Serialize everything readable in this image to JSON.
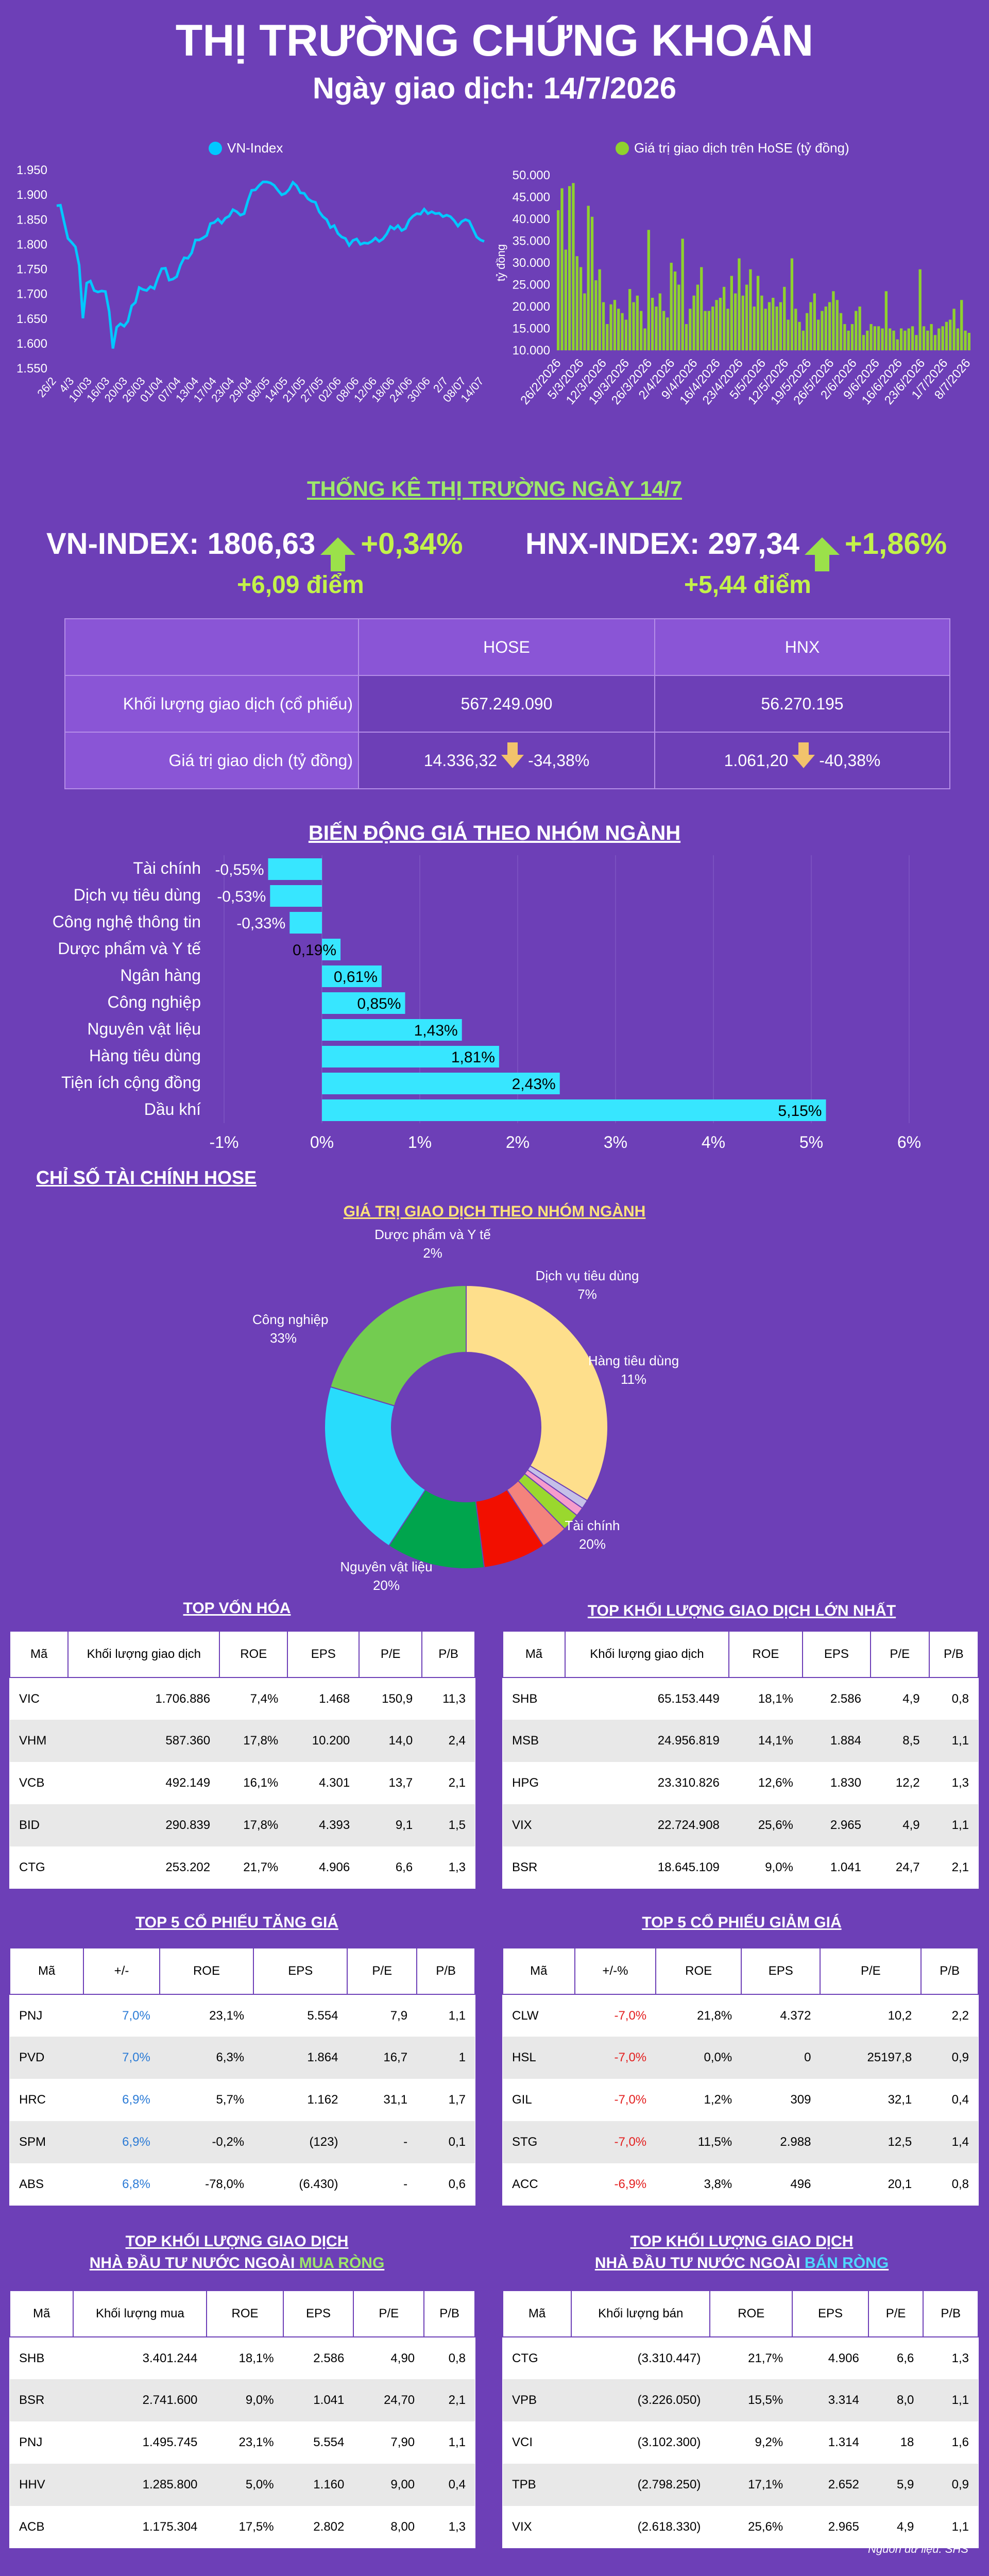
{
  "header": {
    "title": "THỊ TRƯỜNG CHỨNG KHOÁN",
    "subtitle": "Ngày giao dịch: 14/7/2026"
  },
  "chart_data": [
    {
      "type": "line",
      "legend": "VN-Index",
      "color": "#00c8ff",
      "x_ticks": [
        "26/2",
        "4/3",
        "10/03",
        "16/03",
        "20/03",
        "26/03",
        "01/04",
        "07/04",
        "13/04",
        "17/04",
        "23/04",
        "29/04",
        "08/05",
        "14/05",
        "21/05",
        "27/05",
        "02/06",
        "08/06",
        "12/06",
        "18/06",
        "24/06",
        "30/06",
        "2/7",
        "08/07",
        "14/07"
      ],
      "ylim": [
        1550,
        1950
      ],
      "y_ticks": [
        "1.550",
        "1.600",
        "1.650",
        "1.700",
        "1.750",
        "1.800",
        "1.850",
        "1.900",
        "1.950"
      ],
      "values": [
        1878,
        1879,
        1845,
        1812,
        1804,
        1795,
        1758,
        1651,
        1722,
        1726,
        1707,
        1704,
        1706,
        1705,
        1665,
        1590,
        1633,
        1640,
        1635,
        1645,
        1676,
        1683,
        1713,
        1709,
        1707,
        1715,
        1711,
        1733,
        1751,
        1752,
        1728,
        1730,
        1735,
        1758,
        1773,
        1772,
        1783,
        1809,
        1809,
        1813,
        1818,
        1842,
        1844,
        1851,
        1843,
        1853,
        1857,
        1870,
        1866,
        1859,
        1862,
        1888,
        1909,
        1910,
        1919,
        1926,
        1926,
        1924,
        1919,
        1909,
        1900,
        1903,
        1911,
        1925,
        1918,
        1904,
        1903,
        1892,
        1887,
        1885,
        1866,
        1856,
        1850,
        1834,
        1838,
        1822,
        1815,
        1812,
        1798,
        1808,
        1811,
        1800,
        1803,
        1802,
        1806,
        1813,
        1806,
        1811,
        1821,
        1836,
        1831,
        1838,
        1828,
        1832,
        1849,
        1857,
        1862,
        1861,
        1871,
        1862,
        1866,
        1862,
        1863,
        1856,
        1859,
        1856,
        1848,
        1837,
        1846,
        1850,
        1847,
        1831,
        1815,
        1809,
        1806
      ]
    },
    {
      "type": "bar",
      "legend": "Giá trị giao dịch trên HoSE (tỷ đồng)",
      "color": "#8fd12e",
      "ylabel": "tỷ đồng",
      "x_ticks": [
        "26/2/2026",
        "5/3/2026",
        "12/3/2026",
        "19/3/2026",
        "26/3/2026",
        "2/4/2026",
        "9/4/2026",
        "16/4/2026",
        "23/4/2026",
        "5/5/2026",
        "12/5/2026",
        "19/5/2026",
        "26/5/2026",
        "2/6/2026",
        "9/6/2026",
        "16/6/2026",
        "23/6/2026",
        "1/7/2026",
        "8/7/2026"
      ],
      "ylim": [
        10000,
        50000
      ],
      "y_ticks": [
        "10.000",
        "15.000",
        "20.000",
        "25.000",
        "30.000",
        "35.000",
        "40.000",
        "45.000",
        "50.000"
      ],
      "values": [
        42000,
        47000,
        33000,
        47500,
        48200,
        31500,
        29000,
        23000,
        43000,
        40500,
        26000,
        28500,
        21000,
        16000,
        20500,
        21500,
        19500,
        18500,
        17000,
        24000,
        21000,
        22500,
        19000,
        15000,
        37500,
        22000,
        20000,
        23000,
        19000,
        17500,
        30000,
        28000,
        25000,
        35500,
        16000,
        19500,
        22500,
        25000,
        29000,
        19000,
        19000,
        20000,
        21500,
        22000,
        24500,
        19500,
        27000,
        23000,
        31000,
        22500,
        25000,
        28500,
        20000,
        27000,
        22500,
        19500,
        21000,
        22000,
        20000,
        21000,
        24500,
        17000,
        31000,
        19500,
        16500,
        14500,
        18500,
        21000,
        23000,
        17000,
        19000,
        20000,
        21000,
        23500,
        21500,
        18500,
        16000,
        14500,
        16000,
        19000,
        20000,
        13500,
        14500,
        16000,
        15500,
        15500,
        15000,
        23500,
        15000,
        14500,
        12500,
        15000,
        14500,
        15000,
        15500,
        13500,
        28500,
        15500,
        14500,
        16000,
        13500,
        15000,
        15500,
        16500,
        17000,
        19500,
        15000,
        21500,
        14500,
        14000
      ]
    },
    {
      "type": "bar",
      "title": "BIẾN ĐỘNG GIÁ THEO NHÓM NGÀNH",
      "color": "#37e6ff",
      "categories": [
        "Tài chính",
        "Dịch vụ tiêu dùng",
        "Công nghệ thông tin",
        "Dược phẩm và Y tế",
        "Ngân hàng",
        "Công nghiệp",
        "Nguyên vật liệu",
        "Hàng tiêu dùng",
        "Tiện ích cộng đồng",
        "Dầu khí"
      ],
      "values": [
        -0.55,
        -0.53,
        -0.33,
        0.19,
        0.61,
        0.85,
        1.43,
        1.81,
        2.43,
        5.15
      ],
      "labels": [
        "-0,55%",
        "-0,53%",
        "-0,33%",
        "0,19%",
        "0,61%",
        "0,85%",
        "1,43%",
        "1,81%",
        "2,43%",
        "5,15%"
      ],
      "xlim": [
        -1,
        6
      ],
      "x_ticks": [
        "-1%",
        "0%",
        "1%",
        "2%",
        "3%",
        "4%",
        "5%",
        "6%"
      ]
    },
    {
      "type": "pie",
      "title": "GIÁ TRỊ GIAO DỊCH THEO NHÓM NGÀNH",
      "slices": [
        {
          "label": "Công nghiệp",
          "pct_label": "33%",
          "value": 33,
          "color": "#fedf8c"
        },
        {
          "label": "",
          "pct_label": "",
          "value": 1,
          "color": "#c5c0e8"
        },
        {
          "label": "",
          "pct_label": "",
          "value": 1,
          "color": "#f69ccb"
        },
        {
          "label": "Dược phẩm và Y tế",
          "pct_label": "2%",
          "value": 2,
          "color": "#9ad82e"
        },
        {
          "label": "",
          "pct_label": "",
          "value": 3,
          "color": "#f4837c"
        },
        {
          "label": "Dịch vụ tiêu dùng",
          "pct_label": "7%",
          "value": 7,
          "color": "#f20f00"
        },
        {
          "label": "Hàng tiêu dùng",
          "pct_label": "11%",
          "value": 11,
          "color": "#00a54d"
        },
        {
          "label": "Tài chính",
          "pct_label": "20%",
          "value": 20,
          "color": "#28dcfc"
        },
        {
          "label": "Nguyên vật liệu",
          "pct_label": "20%",
          "value": 20,
          "color": "#73cc50"
        }
      ]
    }
  ],
  "stats": {
    "title": "THỐNG KÊ THỊ TRƯỜNG NGÀY 14/7",
    "vn": {
      "label": "VN-INDEX: 1806,63",
      "pct": "+0,34%",
      "pts": "+6,09 điểm"
    },
    "hnx": {
      "label": "HNX-INDEX: 297,34",
      "pct": "+1,86%",
      "pts": "+5,44 điểm"
    },
    "cols": [
      "HOSE",
      "HNX"
    ],
    "row1": {
      "label": "Khối lượng giao dịch (cổ phiếu)",
      "hose": "567.249.090",
      "hnx": "56.270.195"
    },
    "row2": {
      "label": "Giá trị giao dịch (tỷ đồng)",
      "hose": "14.336,32",
      "hose_chg": "-34,38%",
      "hnx": "1.061,20",
      "hnx_chg": "-40,38%"
    }
  },
  "section2": "CHỈ SỐ TÀI CHÍNH HOSE",
  "tables": {
    "t1": {
      "title": "TOP VỐN HÓA",
      "head": [
        "Mã",
        "Khối lượng giao dịch",
        "ROE",
        "EPS",
        "P/E",
        "P/B"
      ],
      "rows": [
        [
          "VIC",
          "1.706.886",
          "7,4%",
          "1.468",
          "150,9",
          "11,3"
        ],
        [
          "VHM",
          "587.360",
          "17,8%",
          "10.200",
          "14,0",
          "2,4"
        ],
        [
          "VCB",
          "492.149",
          "16,1%",
          "4.301",
          "13,7",
          "2,1"
        ],
        [
          "BID",
          "290.839",
          "17,8%",
          "4.393",
          "9,1",
          "1,5"
        ],
        [
          "CTG",
          "253.202",
          "21,7%",
          "4.906",
          "6,6",
          "1,3"
        ]
      ]
    },
    "t2": {
      "title": "TOP KHỐI LƯỢNG GIAO DỊCH LỚN NHẤT",
      "head": [
        "Mã",
        "Khối lượng giao dịch",
        "ROE",
        "EPS",
        "P/E",
        "P/B"
      ],
      "rows": [
        [
          "SHB",
          "65.153.449",
          "18,1%",
          "2.586",
          "4,9",
          "0,8"
        ],
        [
          "MSB",
          "24.956.819",
          "14,1%",
          "1.884",
          "8,5",
          "1,1"
        ],
        [
          "HPG",
          "23.310.826",
          "12,6%",
          "1.830",
          "12,2",
          "1,3"
        ],
        [
          "VIX",
          "22.724.908",
          "25,6%",
          "2.965",
          "4,9",
          "1,1"
        ],
        [
          "BSR",
          "18.645.109",
          "9,0%",
          "1.041",
          "24,7",
          "2,1"
        ]
      ]
    },
    "t3": {
      "title": "TOP 5 CỔ PHIẾU TĂNG GIÁ",
      "head": [
        "Mã",
        "+/-",
        "ROE",
        "EPS",
        "P/E",
        "P/B"
      ],
      "rows": [
        [
          "PNJ",
          "7,0%",
          "23,1%",
          "5.554",
          "7,9",
          "1,1"
        ],
        [
          "PVD",
          "7,0%",
          "6,3%",
          "1.864",
          "16,7",
          "1"
        ],
        [
          "HRC",
          "6,9%",
          "5,7%",
          "1.162",
          "31,1",
          "1,7"
        ],
        [
          "SPM",
          "6,9%",
          "-0,2%",
          "(123)",
          "-",
          "0,1"
        ],
        [
          "ABS",
          "6,8%",
          "-78,0%",
          "(6.430)",
          "-",
          "0,6"
        ]
      ]
    },
    "t4": {
      "title": "TOP 5 CỔ PHIẾU GIẢM GIÁ",
      "head": [
        "Mã",
        "+/-%",
        "ROE",
        "EPS",
        "P/E",
        "P/B"
      ],
      "rows": [
        [
          "CLW",
          "-7,0%",
          "21,8%",
          "4.372",
          "10,2",
          "2,2"
        ],
        [
          "HSL",
          "-7,0%",
          "0,0%",
          "0",
          "25197,8",
          "0,9"
        ],
        [
          "GIL",
          "-7,0%",
          "1,2%",
          "309",
          "32,1",
          "0,4"
        ],
        [
          "STG",
          "-7,0%",
          "11,5%",
          "2.988",
          "12,5",
          "1,4"
        ],
        [
          "ACC",
          "-6,9%",
          "3,8%",
          "496",
          "20,1",
          "0,8"
        ]
      ]
    },
    "t5": {
      "title1": "TOP KHỐI LƯỢNG GIAO DỊCH",
      "title2a": "NHÀ ĐẦU TƯ NƯỚC NGOÀI ",
      "title2b": "MUA RÒNG",
      "head": [
        "Mã",
        "Khối lượng mua",
        "ROE",
        "EPS",
        "P/E",
        "P/B"
      ],
      "rows": [
        [
          "SHB",
          "3.401.244",
          "18,1%",
          "2.586",
          "4,90",
          "0,8"
        ],
        [
          "BSR",
          "2.741.600",
          "9,0%",
          "1.041",
          "24,70",
          "2,1"
        ],
        [
          "PNJ",
          "1.495.745",
          "23,1%",
          "5.554",
          "7,90",
          "1,1"
        ],
        [
          "HHV",
          "1.285.800",
          "5,0%",
          "1.160",
          "9,00",
          "0,4"
        ],
        [
          "ACB",
          "1.175.304",
          "17,5%",
          "2.802",
          "8,00",
          "1,3"
        ]
      ]
    },
    "t6": {
      "title1": "TOP KHỐI LƯỢNG GIAO DỊCH",
      "title2a": "NHÀ ĐẦU TƯ NƯỚC NGOÀI ",
      "title2b": "BÁN RÒNG",
      "head": [
        "Mã",
        "Khối lượng bán",
        "ROE",
        "EPS",
        "P/E",
        "P/B"
      ],
      "rows": [
        [
          "CTG",
          "(3.310.447)",
          "21,7%",
          "4.906",
          "6,6",
          "1,3"
        ],
        [
          "VPB",
          "(3.226.050)",
          "15,5%",
          "3.314",
          "8,0",
          "1,1"
        ],
        [
          "VCI",
          "(3.102.300)",
          "9,2%",
          "1.314",
          "18",
          "1,6"
        ],
        [
          "TPB",
          "(2.798.250)",
          "17,1%",
          "2.652",
          "5,9",
          "0,9"
        ],
        [
          "VIX",
          "(2.618.330)",
          "25,6%",
          "2.965",
          "4,9",
          "1,1"
        ]
      ]
    }
  },
  "source": "Nguồn dữ liệu: SHS"
}
